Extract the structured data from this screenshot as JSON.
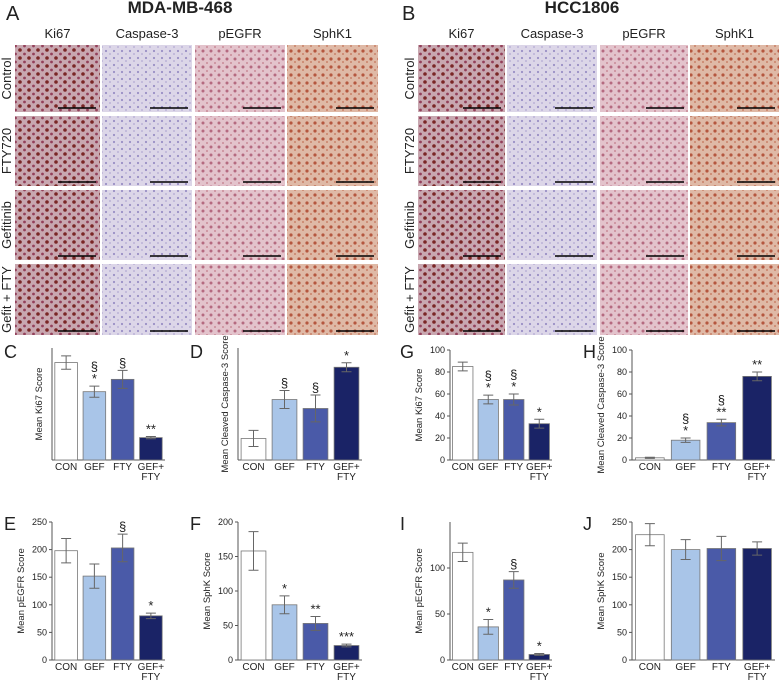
{
  "figure": {
    "panel_a": {
      "letter": "A",
      "title": "MDA-MB-468",
      "columns": [
        "Ki67",
        "Caspase-3",
        "pEGFR",
        "SphK1"
      ],
      "rows": [
        "Control",
        "FTY720",
        "Gefitinib",
        "Gefit + FTY"
      ]
    },
    "panel_b": {
      "letter": "B",
      "title": "HCC1806",
      "columns": [
        "Ki67",
        "Caspase-3",
        "pEGFR",
        "SphK1"
      ],
      "rows": [
        "Control",
        "FTY720",
        "Gefitinib",
        "Gefit + FTY"
      ]
    }
  },
  "chart_data": [
    {
      "type": "bar",
      "panel": "C",
      "ylabel": "Mean Ki67 Score",
      "categories": [
        "CON",
        "GEF",
        "FTY",
        "GEF+ FTY"
      ],
      "values": [
        87,
        61,
        72,
        20
      ],
      "errors": [
        6,
        5,
        8,
        1
      ],
      "colors": [
        "#ffffff",
        "#a9c5e8",
        "#4a5aa8",
        "#1a2366"
      ],
      "significance": [
        null,
        [
          "§",
          "*"
        ],
        [
          "§"
        ],
        [
          "**"
        ]
      ],
      "ylim": [
        0,
        100
      ]
    },
    {
      "type": "bar",
      "panel": "D",
      "ylabel": "Mean Cleaved Caspase-3 Score",
      "categories": [
        "CON",
        "GEF",
        "FTY",
        "GEF+ FTY"
      ],
      "values": [
        4.8,
        13.5,
        11.5,
        20.7
      ],
      "errors": [
        1.8,
        2,
        3,
        1
      ],
      "colors": [
        "#ffffff",
        "#a9c5e8",
        "#4a5aa8",
        "#1a2366"
      ],
      "significance": [
        null,
        [
          "§"
        ],
        [
          "§"
        ],
        [
          "*"
        ]
      ],
      "ylim": [
        0,
        25
      ]
    },
    {
      "type": "bar",
      "panel": "E",
      "ylabel": "Mean pEGFR Score",
      "categories": [
        "CON",
        "GEF",
        "FTY",
        "GEF+ FTY"
      ],
      "values": [
        198,
        152,
        203,
        80
      ],
      "errors": [
        22,
        22,
        25,
        5
      ],
      "colors": [
        "#ffffff",
        "#a9c5e8",
        "#4a5aa8",
        "#1a2366"
      ],
      "significance": [
        null,
        null,
        [
          "§"
        ],
        [
          "*"
        ]
      ],
      "ylim": [
        0,
        250
      ],
      "yticks": [
        0,
        50,
        100,
        150,
        200,
        250
      ]
    },
    {
      "type": "bar",
      "panel": "F",
      "ylabel": "Mean SphK Score",
      "categories": [
        "CON",
        "GEF",
        "FTY",
        "GEF+ FTY"
      ],
      "values": [
        158,
        80,
        53,
        21
      ],
      "errors": [
        28,
        13,
        10,
        2
      ],
      "colors": [
        "#ffffff",
        "#a9c5e8",
        "#4a5aa8",
        "#1a2366"
      ],
      "significance": [
        null,
        [
          "*"
        ],
        [
          "**"
        ],
        [
          "***"
        ]
      ],
      "ylim": [
        0,
        200
      ],
      "yticks": [
        0,
        50,
        100,
        150,
        200
      ]
    },
    {
      "type": "bar",
      "panel": "G",
      "ylabel": "Mean Ki67 Score",
      "categories": [
        "CON",
        "GEF",
        "FTY",
        "GEF+ FTY"
      ],
      "values": [
        85,
        55,
        55,
        33
      ],
      "errors": [
        4,
        4,
        5,
        4
      ],
      "colors": [
        "#ffffff",
        "#a9c5e8",
        "#4a5aa8",
        "#1a2366"
      ],
      "significance": [
        null,
        [
          "§",
          "*"
        ],
        [
          "§",
          "*"
        ],
        [
          "*"
        ]
      ],
      "ylim": [
        0,
        100
      ],
      "yticks": [
        0,
        20,
        40,
        60,
        80,
        100
      ]
    },
    {
      "type": "bar",
      "panel": "H",
      "ylabel": "Mean Cleaved Caspase-3 Score",
      "categories": [
        "CON",
        "GEF",
        "FTY",
        "GEF+ FTY"
      ],
      "values": [
        2,
        18,
        34,
        76
      ],
      "errors": [
        0.5,
        2,
        3,
        4
      ],
      "colors": [
        "#ffffff",
        "#a9c5e8",
        "#4a5aa8",
        "#1a2366"
      ],
      "significance": [
        null,
        [
          "§",
          "*"
        ],
        [
          "§",
          "**"
        ],
        [
          "**"
        ]
      ],
      "ylim": [
        0,
        100
      ],
      "yticks": [
        0,
        20,
        40,
        60,
        80,
        100
      ]
    },
    {
      "type": "bar",
      "panel": "I",
      "ylabel": "Mean pEGFR Score",
      "categories": [
        "CON",
        "GEF",
        "FTY",
        "GEF+ FTY"
      ],
      "values": [
        117,
        36,
        87,
        6
      ],
      "errors": [
        10,
        8,
        9,
        1
      ],
      "colors": [
        "#ffffff",
        "#a9c5e8",
        "#4a5aa8",
        "#1a2366"
      ],
      "significance": [
        null,
        [
          "*"
        ],
        [
          "§"
        ],
        [
          "*"
        ]
      ],
      "ylim": [
        0,
        150
      ],
      "yticks": [
        0,
        50,
        100
      ]
    },
    {
      "type": "bar",
      "panel": "J",
      "ylabel": "Mean SphK Score",
      "categories": [
        "CON",
        "GEF",
        "FTY",
        "GEF+ FTY"
      ],
      "values": [
        227,
        200,
        202,
        202
      ],
      "errors": [
        20,
        18,
        22,
        12
      ],
      "colors": [
        "#ffffff",
        "#a9c5e8",
        "#4a5aa8",
        "#1a2366"
      ],
      "significance": [
        null,
        null,
        null,
        null
      ],
      "ylim": [
        0,
        250
      ],
      "yticks": [
        0,
        50,
        100,
        150,
        200,
        250
      ]
    }
  ]
}
